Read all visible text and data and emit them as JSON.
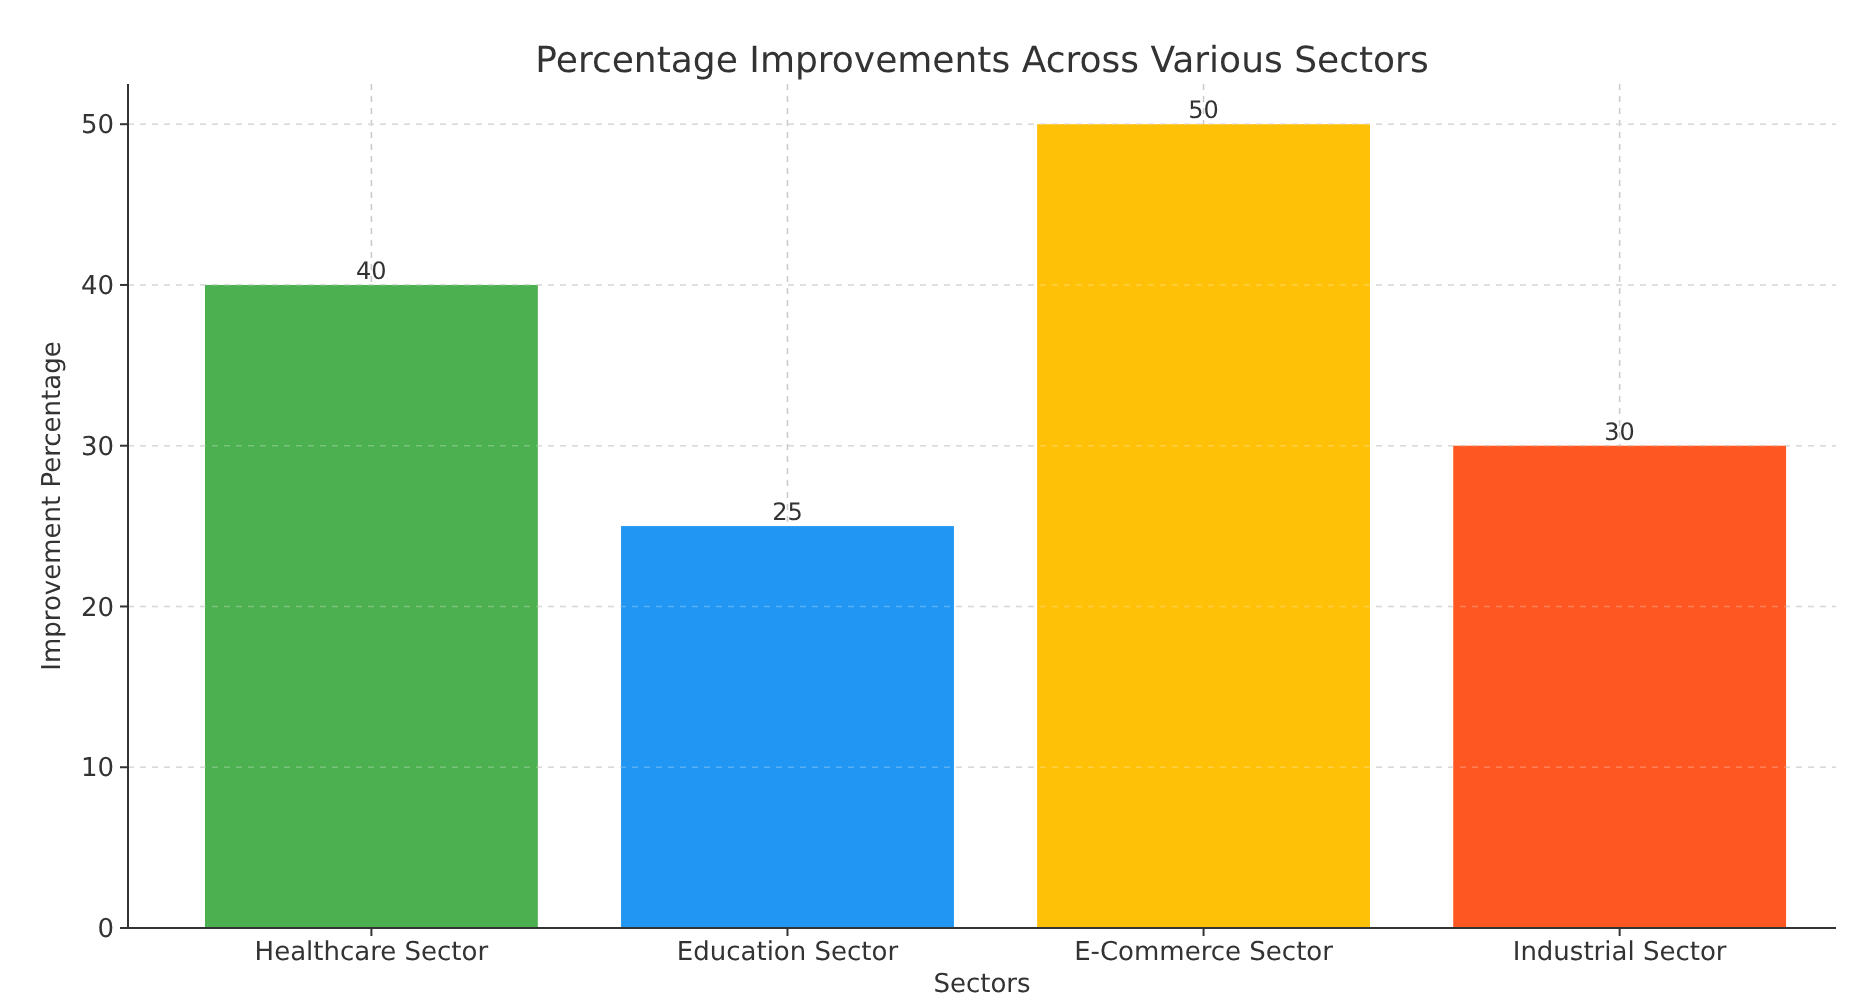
{
  "chart_data": {
    "type": "bar",
    "title": "Percentage Improvements Across Various Sectors",
    "xlabel": "Sectors",
    "ylabel": "Improvement Percentage",
    "categories": [
      "Healthcare Sector",
      "Education Sector",
      "E-Commerce Sector",
      "Industrial Sector"
    ],
    "values": [
      40,
      25,
      50,
      30
    ],
    "colors": [
      "#4caf50",
      "#2196f3",
      "#ffc107",
      "#ff5722"
    ],
    "ylim": [
      0,
      52.5
    ],
    "yticks": [
      0,
      10,
      20,
      30,
      40,
      50
    ],
    "grid": true,
    "data_labels": true
  }
}
